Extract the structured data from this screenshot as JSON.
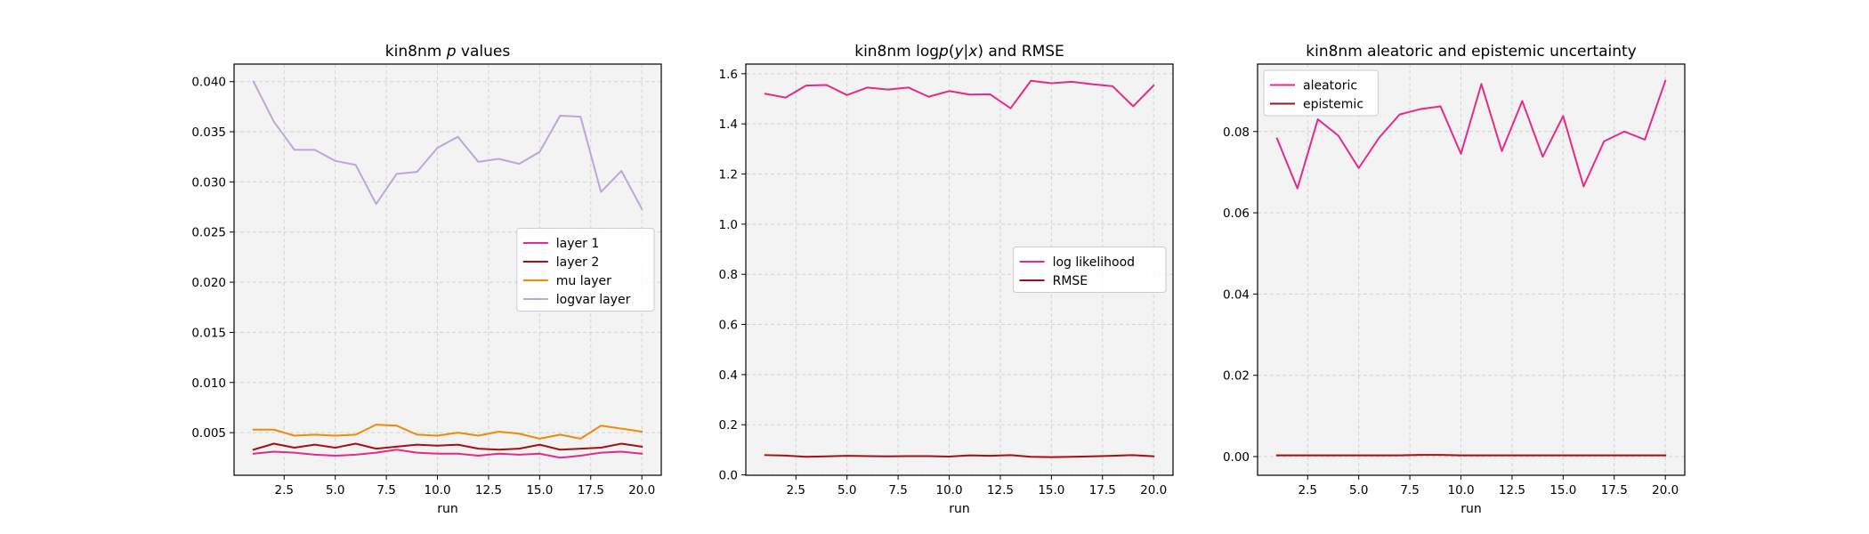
{
  "chart_data": [
    {
      "type": "line",
      "title": "kin8nm p values",
      "title_parts": [
        "kin8nm ",
        "p",
        " values"
      ],
      "xlabel": "run",
      "ylabel": "",
      "xlim": [
        0.05,
        20.95
      ],
      "ylim": [
        0.00075,
        0.04175
      ],
      "xticks": [
        2.5,
        5.0,
        7.5,
        10.0,
        12.5,
        15.0,
        17.5,
        20.0
      ],
      "xtick_labels": [
        "2.5",
        "5.0",
        "7.5",
        "10.0",
        "12.5",
        "15.0",
        "17.5",
        "20.0"
      ],
      "yticks": [
        0.005,
        0.01,
        0.015,
        0.02,
        0.025,
        0.03,
        0.035,
        0.04
      ],
      "ytick_labels": [
        "0.005",
        "0.010",
        "0.015",
        "0.020",
        "0.025",
        "0.030",
        "0.035",
        "0.040"
      ],
      "grid": true,
      "legend_position": "center-right",
      "x": [
        1,
        2,
        3,
        4,
        5,
        6,
        7,
        8,
        9,
        10,
        11,
        12,
        13,
        14,
        15,
        16,
        17,
        18,
        19,
        20
      ],
      "series": [
        {
          "name": "layer 1",
          "color": "#e7298a",
          "values": [
            0.0029,
            0.0031,
            0.003,
            0.0028,
            0.0027,
            0.0028,
            0.003,
            0.0033,
            0.003,
            0.0029,
            0.0029,
            0.0027,
            0.0029,
            0.0028,
            0.0029,
            0.0025,
            0.0027,
            0.003,
            0.0031,
            0.0029
          ]
        },
        {
          "name": "layer 2",
          "color": "#a50f15",
          "values": [
            0.0033,
            0.0039,
            0.0035,
            0.0038,
            0.0035,
            0.0039,
            0.0034,
            0.0036,
            0.0038,
            0.0037,
            0.0038,
            0.0034,
            0.0033,
            0.0034,
            0.0038,
            0.0033,
            0.0034,
            0.0035,
            0.0039,
            0.0036
          ]
        },
        {
          "name": "mu layer",
          "color": "#ef8a0c",
          "values": [
            0.0053,
            0.0053,
            0.0047,
            0.0048,
            0.0047,
            0.0048,
            0.0058,
            0.0057,
            0.0048,
            0.0047,
            0.005,
            0.0047,
            0.0051,
            0.0049,
            0.0044,
            0.0048,
            0.0044,
            0.0057,
            0.0054,
            0.0051
          ]
        },
        {
          "name": "logvar layer",
          "color": "#bca6d6",
          "values": [
            0.04,
            0.036,
            0.0332,
            0.0332,
            0.0321,
            0.0317,
            0.0278,
            0.0308,
            0.031,
            0.0334,
            0.0345,
            0.032,
            0.0323,
            0.0318,
            0.033,
            0.0366,
            0.0365,
            0.029,
            0.0311,
            0.0273
          ]
        }
      ]
    },
    {
      "type": "line",
      "title": "kin8nm logp(y|x) and RMSE",
      "title_parts": [
        "kin8nm log",
        "p",
        "(",
        "y",
        "|",
        "x",
        ") and RMSE"
      ],
      "xlabel": "run",
      "ylabel": "",
      "xlim": [
        0.05,
        20.95
      ],
      "ylim": [
        -0.0015,
        1.6385
      ],
      "xticks": [
        2.5,
        5.0,
        7.5,
        10.0,
        12.5,
        15.0,
        17.5,
        20.0
      ],
      "xtick_labels": [
        "2.5",
        "5.0",
        "7.5",
        "10.0",
        "12.5",
        "15.0",
        "17.5",
        "20.0"
      ],
      "yticks": [
        0.0,
        0.2,
        0.4,
        0.6,
        0.8,
        1.0,
        1.2,
        1.4,
        1.6
      ],
      "ytick_labels": [
        "0.0",
        "0.2",
        "0.4",
        "0.6",
        "0.8",
        "1.0",
        "1.2",
        "1.4",
        "1.6"
      ],
      "grid": true,
      "legend_position": "center-right",
      "x": [
        1,
        2,
        3,
        4,
        5,
        6,
        7,
        8,
        9,
        10,
        11,
        12,
        13,
        14,
        15,
        16,
        17,
        18,
        19,
        20
      ],
      "series": [
        {
          "name": "log likelihood",
          "color": "#e7298a",
          "values": [
            1.52,
            1.505,
            1.553,
            1.555,
            1.515,
            1.545,
            1.537,
            1.545,
            1.508,
            1.531,
            1.517,
            1.518,
            1.462,
            1.572,
            1.562,
            1.568,
            1.558,
            1.55,
            1.47,
            1.553
          ]
        },
        {
          "name": "RMSE",
          "color": "#a50f15",
          "values": [
            0.079,
            0.077,
            0.072,
            0.074,
            0.076,
            0.075,
            0.074,
            0.075,
            0.075,
            0.073,
            0.078,
            0.076,
            0.079,
            0.072,
            0.071,
            0.072,
            0.074,
            0.076,
            0.079,
            0.074
          ]
        }
      ]
    },
    {
      "type": "line",
      "title": "kin8nm aleatoric and epistemic uncertainty",
      "xlabel": "run",
      "ylabel": "",
      "xlim": [
        0.05,
        20.95
      ],
      "ylim": [
        -0.0046,
        0.0966
      ],
      "xticks": [
        2.5,
        5.0,
        7.5,
        10.0,
        12.5,
        15.0,
        17.5,
        20.0
      ],
      "xtick_labels": [
        "2.5",
        "5.0",
        "7.5",
        "10.0",
        "12.5",
        "15.0",
        "17.5",
        "20.0"
      ],
      "yticks": [
        0.0,
        0.02,
        0.04,
        0.06,
        0.08
      ],
      "ytick_labels": [
        "0.00",
        "0.02",
        "0.04",
        "0.06",
        "0.08"
      ],
      "grid": true,
      "legend_position": "upper-left",
      "x": [
        1,
        2,
        3,
        4,
        5,
        6,
        7,
        8,
        9,
        10,
        11,
        12,
        13,
        14,
        15,
        16,
        17,
        18,
        19,
        20
      ],
      "series": [
        {
          "name": "aleatoric",
          "color": "#e7298a",
          "values": [
            0.0783,
            0.066,
            0.083,
            0.079,
            0.071,
            0.0785,
            0.0842,
            0.0855,
            0.0862,
            0.0745,
            0.0917,
            0.0752,
            0.0875,
            0.0738,
            0.0838,
            0.0665,
            0.0776,
            0.08,
            0.078,
            0.0925
          ]
        },
        {
          "name": "epistemic",
          "color": "#a50f15",
          "values": [
            0.0003,
            0.0003,
            0.0003,
            0.0003,
            0.0003,
            0.0003,
            0.0003,
            0.0004,
            0.0004,
            0.0003,
            0.0003,
            0.0003,
            0.0003,
            0.0003,
            0.0003,
            0.0003,
            0.0003,
            0.0003,
            0.0003,
            0.0003
          ]
        }
      ]
    }
  ]
}
